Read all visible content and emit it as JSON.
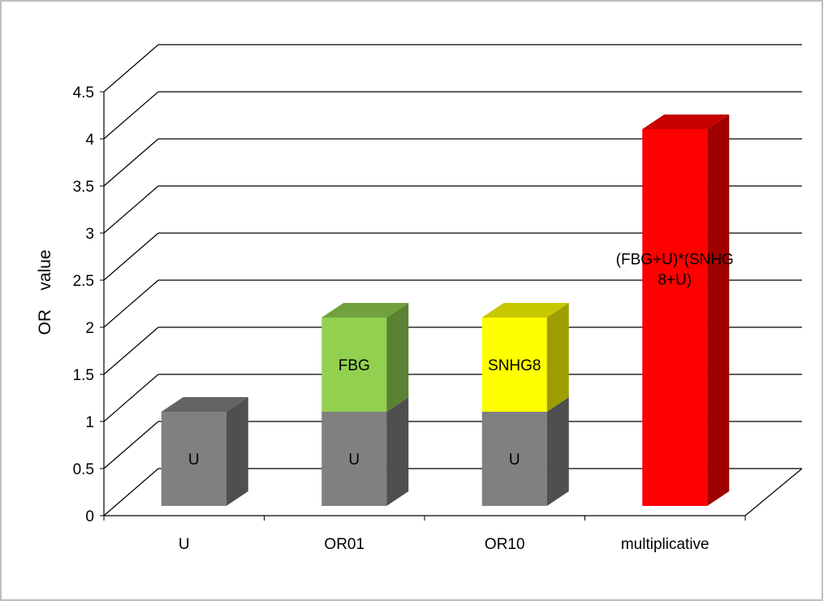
{
  "chart_data": {
    "type": "bar",
    "subtype": "stacked-3d",
    "title": "",
    "xlabel": "",
    "ylabel": "OR    value",
    "ylim": [
      0,
      4.5
    ],
    "ytick_step": 0.5,
    "yticks": [
      "0",
      "0.5",
      "1",
      "1.5",
      "2",
      "2.5",
      "3",
      "3.5",
      "4",
      "4.5"
    ],
    "grid": true,
    "legend": "none",
    "categories": [
      "U",
      "OR01",
      "OR10",
      "multiplicative"
    ],
    "bars": [
      {
        "category": "U",
        "segments": [
          {
            "label": "U",
            "value": 1,
            "color": "#808080"
          }
        ]
      },
      {
        "category": "OR01",
        "segments": [
          {
            "label": "U",
            "value": 1,
            "color": "#808080"
          },
          {
            "label": "FBG",
            "value": 1,
            "color": "#92d050"
          }
        ]
      },
      {
        "category": "OR10",
        "segments": [
          {
            "label": "U",
            "value": 1,
            "color": "#808080"
          },
          {
            "label": "SNHG8",
            "value": 1,
            "color": "#ffff00"
          }
        ]
      },
      {
        "category": "multiplicative",
        "segments": [
          {
            "label": "(FBG+U)*(SNHG 8+U)",
            "label_lines": [
              "(FBG+U)*(SNHG",
              "8+U)"
            ],
            "value": 4,
            "color": "#ff0000"
          }
        ]
      }
    ]
  }
}
